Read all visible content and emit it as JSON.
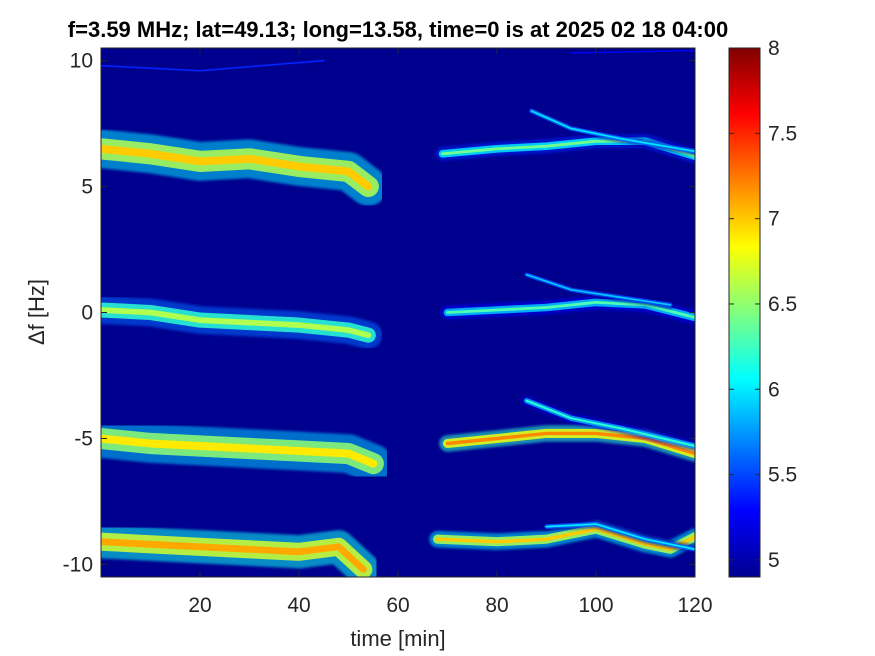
{
  "chart_data": {
    "type": "heatmap",
    "title": "f=3.59 MHz;  lat=49.13; long=13.58, time=0 is at 2025 02 18 04:00",
    "xlabel": "time [min]",
    "ylabel": "Δf [Hz]",
    "xlim": [
      0,
      120
    ],
    "ylim": [
      -10.5,
      10.5
    ],
    "x_ticks": [
      20,
      40,
      60,
      80,
      100,
      120
    ],
    "x_tick_labels": [
      "20",
      "40",
      "60",
      "80",
      "100",
      "120"
    ],
    "y_ticks": [
      -10,
      -5,
      0,
      5,
      10
    ],
    "y_tick_labels": [
      "-10",
      "-5",
      "0",
      "5",
      "10"
    ],
    "colorbar": {
      "colormap": "jet",
      "range": [
        4.9,
        8
      ],
      "ticks": [
        5,
        5.5,
        6,
        6.5,
        7,
        7.5,
        8
      ],
      "tick_labels": [
        "5",
        "5.5",
        "6",
        "6.5",
        "7",
        "7.5",
        "8"
      ]
    },
    "background_color": "#00008f",
    "data_gap_minutes": [
      55,
      68
    ],
    "traces": [
      {
        "points": [
          [
            0,
            6.5
          ],
          [
            10,
            6.3
          ],
          [
            20,
            6.0
          ],
          [
            30,
            6.1
          ],
          [
            40,
            5.8
          ],
          [
            50,
            5.6
          ],
          [
            54,
            5.0
          ]
        ],
        "width": 0.7,
        "intensity": 7.0
      },
      {
        "points": [
          [
            0,
            0.1
          ],
          [
            10,
            0.0
          ],
          [
            20,
            -0.3
          ],
          [
            30,
            -0.4
          ],
          [
            40,
            -0.5
          ],
          [
            50,
            -0.7
          ],
          [
            54,
            -0.9
          ]
        ],
        "width": 0.5,
        "intensity": 6.6
      },
      {
        "points": [
          [
            0,
            -5.0
          ],
          [
            10,
            -5.2
          ],
          [
            20,
            -5.3
          ],
          [
            30,
            -5.4
          ],
          [
            40,
            -5.5
          ],
          [
            50,
            -5.6
          ],
          [
            55,
            -6.0
          ]
        ],
        "width": 0.7,
        "intensity": 6.9
      },
      {
        "points": [
          [
            0,
            -9.1
          ],
          [
            10,
            -9.2
          ],
          [
            20,
            -9.3
          ],
          [
            30,
            -9.4
          ],
          [
            40,
            -9.5
          ],
          [
            48,
            -9.3
          ],
          [
            53,
            -10.2
          ]
        ],
        "width": 0.6,
        "intensity": 7.1
      },
      {
        "points": [
          [
            69,
            6.3
          ],
          [
            80,
            6.5
          ],
          [
            90,
            6.6
          ],
          [
            100,
            6.8
          ],
          [
            110,
            6.8
          ],
          [
            120,
            6.2
          ]
        ],
        "width": 0.25,
        "intensity": 6.4
      },
      {
        "points": [
          [
            87,
            8.0
          ],
          [
            95,
            7.3
          ],
          [
            105,
            6.9
          ],
          [
            120,
            6.4
          ]
        ],
        "width": 0.15,
        "intensity": 6.0
      },
      {
        "points": [
          [
            70,
            0.0
          ],
          [
            80,
            0.1
          ],
          [
            90,
            0.2
          ],
          [
            100,
            0.4
          ],
          [
            110,
            0.3
          ],
          [
            120,
            -0.2
          ]
        ],
        "width": 0.25,
        "intensity": 6.3
      },
      {
        "points": [
          [
            86,
            1.5
          ],
          [
            95,
            0.9
          ],
          [
            105,
            0.6
          ],
          [
            115,
            0.3
          ]
        ],
        "width": 0.15,
        "intensity": 5.9
      },
      {
        "points": [
          [
            70,
            -5.2
          ],
          [
            80,
            -5.0
          ],
          [
            90,
            -4.8
          ],
          [
            100,
            -4.8
          ],
          [
            110,
            -5.0
          ],
          [
            120,
            -5.6
          ]
        ],
        "width": 0.3,
        "intensity": 7.2
      },
      {
        "points": [
          [
            86,
            -3.5
          ],
          [
            95,
            -4.2
          ],
          [
            105,
            -4.6
          ],
          [
            120,
            -5.3
          ]
        ],
        "width": 0.18,
        "intensity": 6.2
      },
      {
        "points": [
          [
            68,
            -9.0
          ],
          [
            80,
            -9.1
          ],
          [
            90,
            -9.0
          ],
          [
            100,
            -8.6
          ],
          [
            110,
            -9.2
          ],
          [
            115,
            -9.4
          ],
          [
            120,
            -8.9
          ]
        ],
        "width": 0.3,
        "intensity": 7.0
      },
      {
        "points": [
          [
            90,
            -8.5
          ],
          [
            100,
            -8.4
          ],
          [
            110,
            -9.0
          ],
          [
            120,
            -9.4
          ]
        ],
        "width": 0.15,
        "intensity": 6.0
      },
      {
        "points": [
          [
            0,
            9.8
          ],
          [
            20,
            9.6
          ],
          [
            45,
            10.0
          ]
        ],
        "width": 0.12,
        "intensity": 5.4
      },
      {
        "points": [
          [
            95,
            10.3
          ],
          [
            120,
            10.4
          ]
        ],
        "width": 0.1,
        "intensity": 5.3
      }
    ]
  }
}
